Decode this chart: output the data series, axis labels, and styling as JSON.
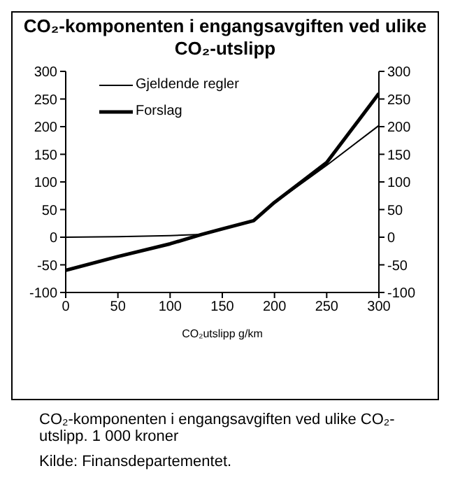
{
  "chart_data": {
    "type": "line",
    "title": "CO₂-komponenten i engangsavgiften ved ulike CO₂-utslipp",
    "xlabel": "CO₂utslipp g/km",
    "annotations": [
      "CO₂-komponenten i engangsavgiften ved ulike CO₂-utslipp. 1 000 kroner",
      "Kilde: Finansdepartementet."
    ],
    "x": [
      0,
      50,
      100,
      130,
      150,
      180,
      200,
      250,
      300
    ],
    "series": [
      {
        "name": "Gjeldende regler",
        "color": "#000000",
        "values": [
          0,
          1,
          3,
          5,
          15,
          30,
          62,
          130,
          202
        ]
      },
      {
        "name": "Forslag",
        "color": "#000000",
        "values": [
          -60,
          -35,
          -12,
          5,
          15,
          30,
          63,
          135,
          260
        ]
      }
    ],
    "xlim": [
      0,
      300
    ],
    "xticks": [
      0,
      50,
      100,
      150,
      200,
      250,
      300
    ],
    "ylim": [
      -100,
      300
    ],
    "yticks": [
      -100,
      -50,
      0,
      50,
      100,
      150,
      200,
      250,
      300
    ],
    "y2lim": [
      -100,
      300
    ],
    "y2ticks": [
      -100,
      -50,
      0,
      50,
      100,
      150,
      200,
      250,
      300
    ],
    "grid": false,
    "legend": "top left",
    "marker": "none",
    "line_style": "solid"
  }
}
